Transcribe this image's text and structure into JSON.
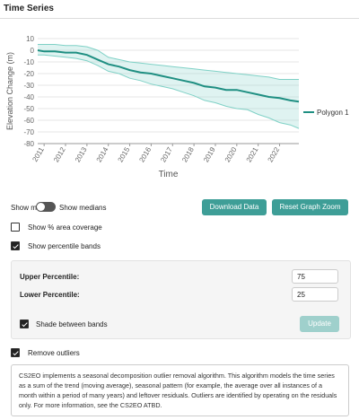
{
  "header": {
    "title": "Time Series"
  },
  "chart_data": {
    "type": "line",
    "x_label": "Time",
    "y_label": "Elevation Change (m)",
    "x": [
      2010.7,
      2011,
      2011.5,
      2012,
      2012.5,
      2013,
      2013.5,
      2014,
      2014.5,
      2015,
      2015.5,
      2016,
      2016.5,
      2017,
      2017.5,
      2018,
      2018.5,
      2019,
      2019.5,
      2020,
      2020.5,
      2021,
      2021.5,
      2022,
      2022.5,
      2022.9
    ],
    "series": [
      {
        "name": "Polygon 1",
        "color": "#1f8f82",
        "values": [
          0,
          -1,
          -1,
          -2,
          -2,
          -4,
          -8,
          -12,
          -14,
          -17,
          -19,
          -20,
          -22,
          -24,
          -26,
          -28,
          -31,
          -32,
          -34,
          -34,
          -36,
          -38,
          -40,
          -41,
          -43,
          -44
        ],
        "band": {
          "color": "#7fd1c6",
          "upper": [
            5,
            5,
            5,
            4,
            4,
            3,
            0,
            -6,
            -8,
            -10,
            -11,
            -12,
            -13,
            -14,
            -15,
            -16,
            -17,
            -18,
            -19,
            -20,
            -21,
            -22,
            -23,
            -25,
            -25,
            -25
          ],
          "lower": [
            -4,
            -4,
            -5,
            -6,
            -7,
            -9,
            -13,
            -18,
            -20,
            -24,
            -26,
            -29,
            -31,
            -33,
            -36,
            -39,
            -43,
            -45,
            -48,
            -50,
            -51,
            -55,
            -58,
            -62,
            -64,
            -67
          ]
        }
      }
    ],
    "xlim": [
      2010.7,
      2022.9
    ],
    "xticks": [
      2011,
      2012,
      2013,
      2014,
      2015,
      2016,
      2017,
      2018,
      2019,
      2020,
      2021,
      2022
    ],
    "ylim": [
      -80,
      10
    ],
    "yticks": [
      10,
      0,
      -10,
      -20,
      -30,
      -40,
      -50,
      -60,
      -70,
      -80
    ],
    "grid": true,
    "legend": "right"
  },
  "controls": {
    "toggle_left": "Show means",
    "toggle_right": "Show medians",
    "buttons": [
      "Download Data",
      "Reset Graph Zoom"
    ],
    "checkboxes": [
      {
        "label": "Show % area coverage",
        "checked": false
      },
      {
        "label": "Show percentile bands",
        "checked": true
      }
    ]
  },
  "percentiles": {
    "upper": {
      "label": "Upper Percentile:",
      "value": 75
    },
    "lower": {
      "label": "Lower Percentile:",
      "value": 25
    },
    "shade": {
      "label": "Shade between bands",
      "checked": true
    },
    "update": "Update"
  },
  "outliers": {
    "label": "Remove outliers",
    "checked": true,
    "description": "CS2EO implements a seasonal decomposition outlier removal algorithm. This algorithm models the time series as a sum of the trend (moving average), seasonal pattern (for example, the average over all instances of a month within a period of many years) and leftover residuals. Outliers are identified by operating on the residuals only. For more information, see the CS2EO ATBD."
  }
}
